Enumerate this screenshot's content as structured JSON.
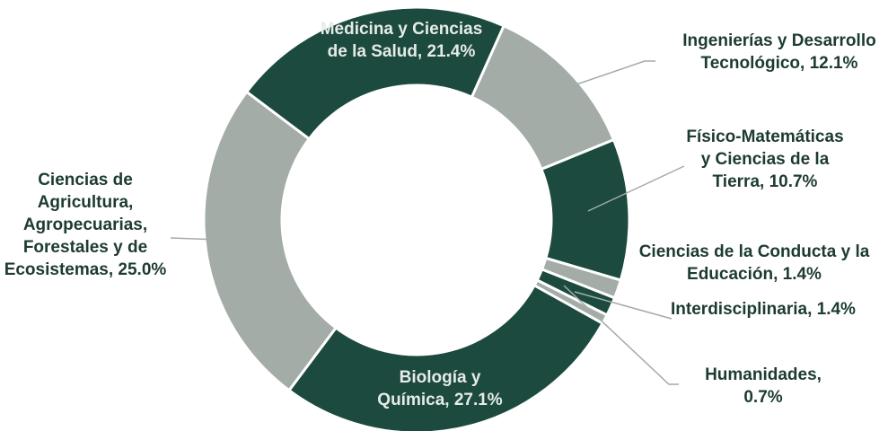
{
  "chart_data": {
    "type": "pie",
    "categories": [
      "Medicina y Ciencias de la Salud, 21.4%",
      "Ingenierías y Desarrollo Tecnológico, 12.1%",
      "Físico-Matemáticas y Ciencias de la Tierra, 10.7%",
      "Ciencias de la Conducta y la Educación, 1.4%",
      "Interdisciplinaria, 1.4%",
      "Humanidades, 0.7%",
      "Biología y Química, 27.1%",
      "Ciencias de Agricultura, Agropecuarias, Forestales y de Ecosistemas, 25.0%"
    ],
    "values": [
      21.4,
      12.1,
      10.7,
      1.4,
      1.4,
      0.7,
      27.1,
      25.0
    ],
    "colors": [
      "#1c4a3e",
      "#a3aca7",
      "#1c4a3e",
      "#a3aca7",
      "#1c4a3e",
      "#a3aca7",
      "#1c4a3e",
      "#a3aca7"
    ]
  }
}
